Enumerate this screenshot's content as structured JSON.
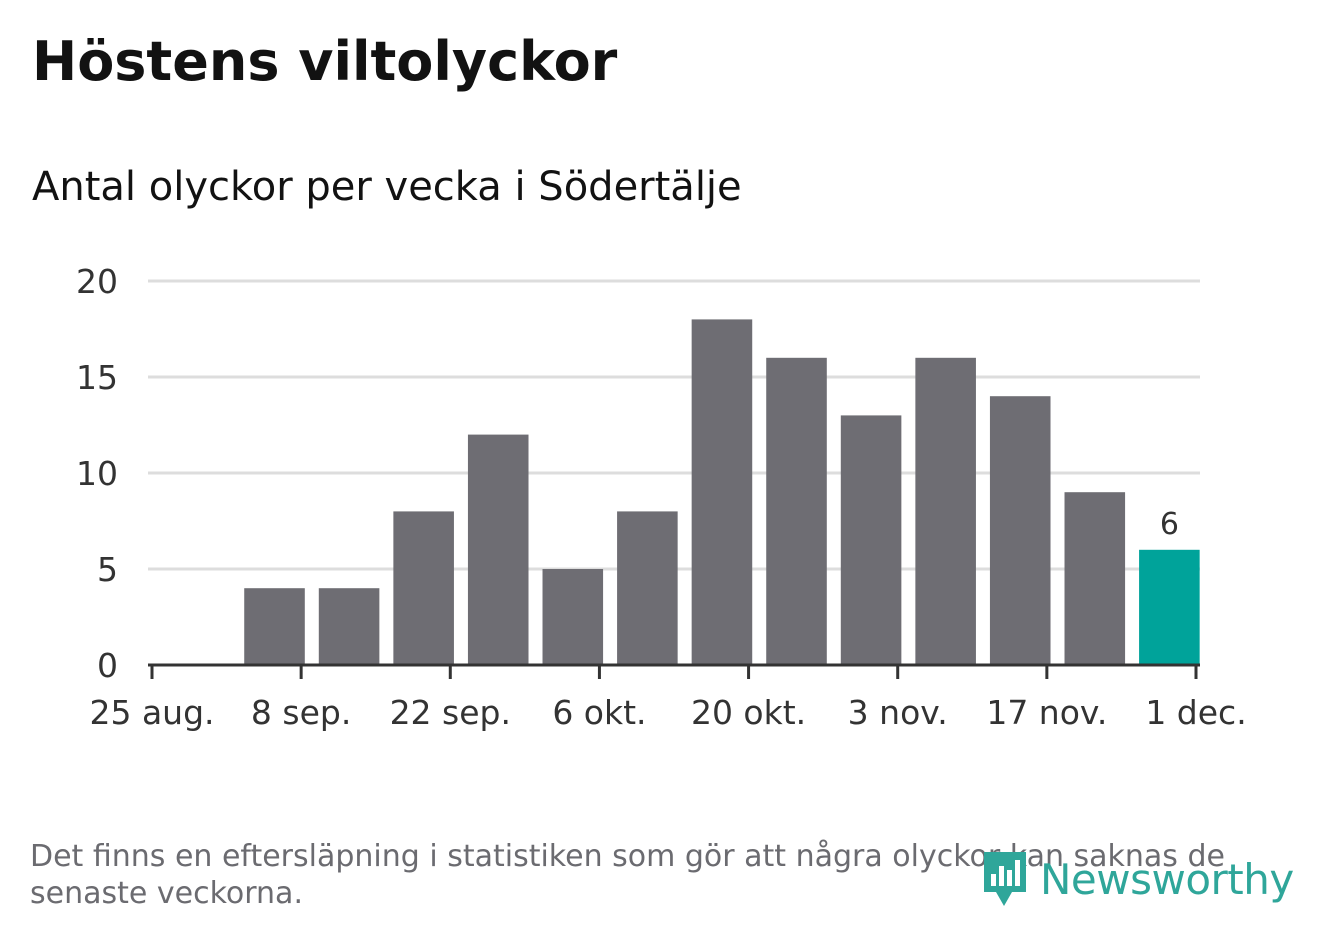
{
  "title": "Höstens viltolyckor",
  "subtitle": "Antal olyckor per vecka i Södertälje",
  "footnote": "Det finns en eftersläpning i statistiken som gör att några olyckor kan saknas de senaste veckorna.",
  "brand": {
    "name": "Newsworthy",
    "icon": "newsworthy-logo-icon"
  },
  "colors": {
    "bar": "#6e6d73",
    "highlight": "#00a39a",
    "grid": "#dddddd",
    "axis": "#333333",
    "brand": "#2fa69a"
  },
  "chart_data": {
    "type": "bar",
    "x_axis_type": "date",
    "x": [
      "2019-09-02",
      "2019-09-09",
      "2019-09-16",
      "2019-09-23",
      "2019-09-30",
      "2019-10-07",
      "2019-10-14",
      "2019-10-21",
      "2019-10-28",
      "2019-11-04",
      "2019-11-11",
      "2019-11-18",
      "2019-11-25"
    ],
    "values": [
      4,
      4,
      8,
      12,
      5,
      8,
      18,
      16,
      13,
      16,
      14,
      9,
      6
    ],
    "highlight_index": 12,
    "data_labels": [
      {
        "index": 12,
        "text": "6"
      }
    ],
    "y_ticks": [
      0,
      5,
      10,
      15,
      20
    ],
    "ylim": [
      0,
      20
    ],
    "x_ticks": [
      {
        "date": "2019-08-25",
        "label": "25 aug."
      },
      {
        "date": "2019-09-08",
        "label": "8 sep."
      },
      {
        "date": "2019-09-22",
        "label": "22 sep."
      },
      {
        "date": "2019-10-06",
        "label": "6 okt."
      },
      {
        "date": "2019-10-20",
        "label": "20 okt."
      },
      {
        "date": "2019-11-03",
        "label": "3 nov."
      },
      {
        "date": "2019-11-17",
        "label": "17 nov."
      },
      {
        "date": "2019-12-01",
        "label": "1 dec."
      }
    ],
    "xlim": [
      "2019-08-25",
      "2019-12-01"
    ],
    "grid": true,
    "title": "Höstens viltolyckor",
    "subtitle": "Antal olyckor per vecka i Södertälje",
    "xlabel": "",
    "ylabel": ""
  }
}
